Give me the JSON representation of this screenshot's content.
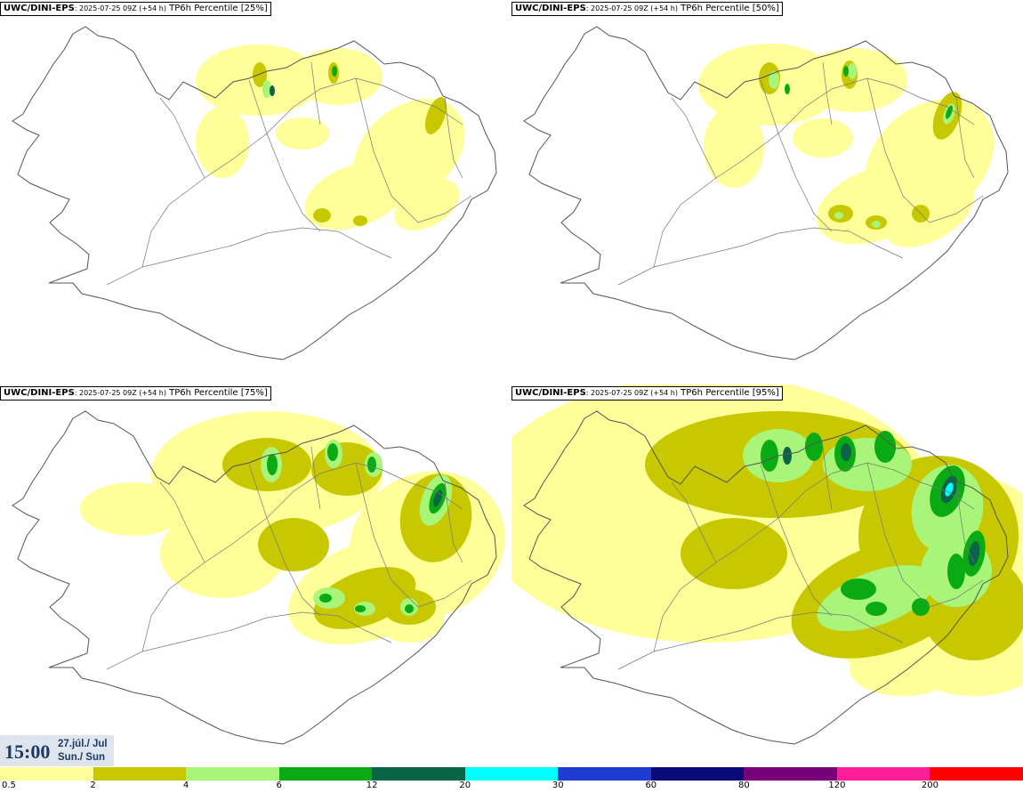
{
  "panels": [
    {
      "source": "UWC/DINI-EPS",
      "run": ": 2025-07-25 09Z (+54 h)",
      "field": "TP6h Percentile [25%]",
      "level": 1
    },
    {
      "source": "UWC/DINI-EPS",
      "run": ": 2025-07-25 09Z (+54 h)",
      "field": "TP6h Percentile [50%]",
      "level": 2
    },
    {
      "source": "UWC/DINI-EPS",
      "run": ": 2025-07-25 09Z (+54 h)",
      "field": "TP6h Percentile [75%]",
      "level": 3
    },
    {
      "source": "UWC/DINI-EPS",
      "run": ": 2025-07-25 09Z (+54 h)",
      "field": "TP6h Percentile [95%]",
      "level": 4
    }
  ],
  "valid_time": {
    "time": "15:00",
    "date_line": "27.júl./ Jul",
    "day_line": "Sun./ Sun"
  },
  "legend": {
    "colors": [
      "#ffff99",
      "#c8c800",
      "#a8f57a",
      "#0aaa14",
      "#0a6446",
      "#00ffff",
      "#1e3cd2",
      "#0a0a78",
      "#780078",
      "#ff1e96",
      "#ff0000"
    ],
    "ticks": [
      "0.5",
      "2",
      "4",
      "6",
      "12",
      "20",
      "30",
      "60",
      "80",
      "120",
      "200"
    ]
  }
}
